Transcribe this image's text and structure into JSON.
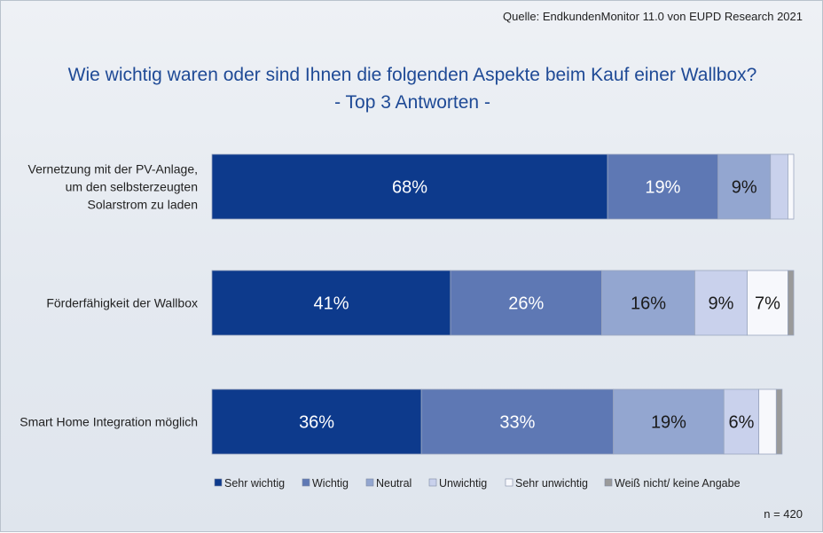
{
  "source": "Quelle: EndkundenMonitor 11.0 von EUPD Research 2021",
  "title_line1": "Wie wichtig waren oder sind Ihnen die folgenden Aspekte beim Kauf einer Wallbox?",
  "title_line2": "- Top 3 Antworten -",
  "n_label": "n = 420",
  "chart_data": {
    "type": "bar",
    "orientation": "horizontal",
    "stacked": true,
    "percent_scale": true,
    "categories": [
      [
        "Vernetzung mit der PV-Anlage,",
        "um den selbsterzeugten",
        "Solarstrom zu laden"
      ],
      [
        "Förderfähigkeit der Wallbox"
      ],
      [
        "Smart Home Integration möglich"
      ]
    ],
    "series": [
      {
        "name": "Sehr wichtig",
        "color": "#0d3a8c",
        "values": [
          68,
          41,
          36
        ],
        "labels": [
          "68%",
          "41%",
          "36%"
        ]
      },
      {
        "name": "Wichtig",
        "color": "#5e78b4",
        "values": [
          19,
          26,
          33
        ],
        "labels": [
          "19%",
          "26%",
          "33%"
        ]
      },
      {
        "name": "Neutral",
        "color": "#93a6d0",
        "values": [
          9,
          16,
          19
        ],
        "labels": [
          "9%",
          "16%",
          "19%"
        ]
      },
      {
        "name": "Unwichtig",
        "color": "#c9d1ec",
        "values": [
          3,
          9,
          6
        ],
        "labels": [
          "",
          "9%",
          "6%"
        ]
      },
      {
        "name": "Sehr unwichtig",
        "color": "#f7f8fc",
        "values": [
          1,
          7,
          3
        ],
        "labels": [
          "",
          "7%",
          ""
        ]
      },
      {
        "name": "Weiß nicht/ keine Angabe",
        "color": "#9a9a9a",
        "values": [
          0,
          1,
          1
        ],
        "labels": [
          "",
          "",
          ""
        ]
      }
    ],
    "legend_position": "bottom",
    "grid": false
  }
}
